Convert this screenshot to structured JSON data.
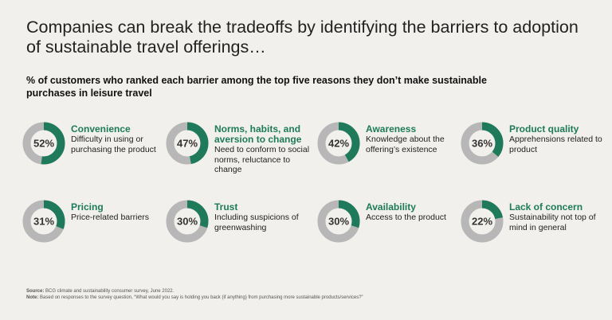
{
  "title": "Companies can break the tradeoffs by identifying the barriers to adoption of sustainable travel offerings…",
  "subtitle": "% of customers who ranked each barrier among the top five reasons they don’t make sustainable purchases in leisure travel",
  "colors": {
    "accent": "#1e7a5a",
    "track": "#b7b7b7",
    "background": "#f1f0ec"
  },
  "chart_data": {
    "type": "pie",
    "style": "donut",
    "unit": "%",
    "items": [
      {
        "name": "Convenience",
        "value": 52,
        "label": "52%",
        "description": "Difficulty in using or purchasing the product"
      },
      {
        "name": "Norms, habits, and aversion to change",
        "value": 47,
        "label": "47%",
        "description": "Need to conform to social norms, reluctance to change"
      },
      {
        "name": "Awareness",
        "value": 42,
        "label": "42%",
        "description": "Knowledge about the offering’s existence"
      },
      {
        "name": "Product quality",
        "value": 36,
        "label": "36%",
        "description": "Apprehensions related to product"
      },
      {
        "name": "Pricing",
        "value": 31,
        "label": "31%",
        "description": "Price-related barriers"
      },
      {
        "name": "Trust",
        "value": 30,
        "label": "30%",
        "description": "Including suspicions of greenwashing"
      },
      {
        "name": "Availability",
        "value": 30,
        "label": "30%",
        "description": "Access to the product"
      },
      {
        "name": "Lack of concern",
        "value": 22,
        "label": "22%",
        "description": "Sustainability not top of mind in general"
      }
    ]
  },
  "footer": {
    "source_label": "Source:",
    "source_text": "BCG climate and sustainability consumer survey, June 2022.",
    "note_label": "Note:",
    "note_text": "Based on responses to the survey question, “What would you say is holding you back (if anything) from purchasing more sustainable products/services?”"
  }
}
